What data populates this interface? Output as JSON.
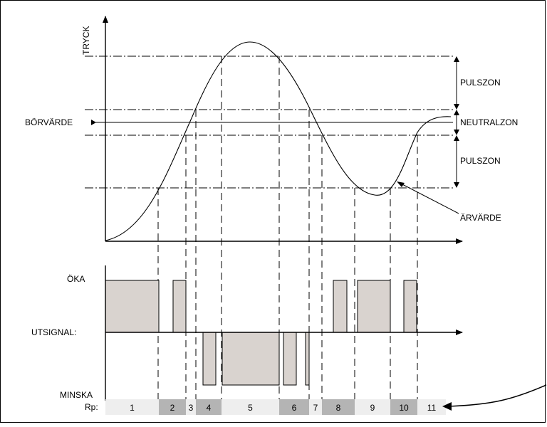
{
  "labels": {
    "y_axis": "TRYCK",
    "setpoint": "BÖRVÄRDE",
    "actual_value": "ÄRVÄRDE",
    "pulse_zone_upper": "PULSZON",
    "neutral_zone": "NEUTRALZON",
    "pulse_zone_lower": "PULSZON",
    "increase": "ÖKA",
    "output_signal": "UTSIGNAL:",
    "decrease": "MINSKA",
    "rp": "Rp:"
  },
  "rp_segments": [
    {
      "label": "1",
      "shade": "light"
    },
    {
      "label": "2",
      "shade": "dark"
    },
    {
      "label": "3",
      "shade": "light"
    },
    {
      "label": "4",
      "shade": "dark"
    },
    {
      "label": "5",
      "shade": "light"
    },
    {
      "label": "6",
      "shade": "dark"
    },
    {
      "label": "7",
      "shade": "light"
    },
    {
      "label": "8",
      "shade": "dark"
    },
    {
      "label": "9",
      "shade": "light"
    },
    {
      "label": "10",
      "shade": "dark"
    },
    {
      "label": "11",
      "shade": "light"
    }
  ],
  "colors": {
    "pulse_fill": "#d9d3cf",
    "rp_light": "#eeeeee",
    "rp_dark": "#b4b4b4"
  }
}
